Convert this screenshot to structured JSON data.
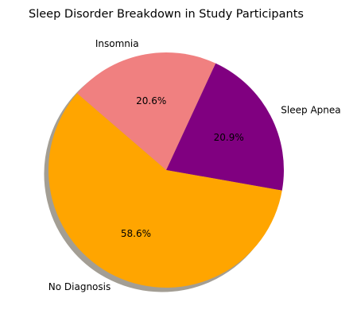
{
  "chart_data": {
    "type": "pie",
    "title": "Sleep Disorder Breakdown in Study Participants",
    "categories": [
      "Sleep Apnea",
      "Insomnia",
      "No Diagnosis"
    ],
    "values": [
      20.9,
      20.6,
      58.6
    ],
    "percent_labels": [
      "20.9%",
      "20.6%",
      "58.6%"
    ],
    "colors": [
      "#800080",
      "#F08080",
      "#FFA500"
    ],
    "start_angle_deg": -10,
    "direction": "counterclockwise",
    "shadow": true,
    "legend": "none"
  }
}
